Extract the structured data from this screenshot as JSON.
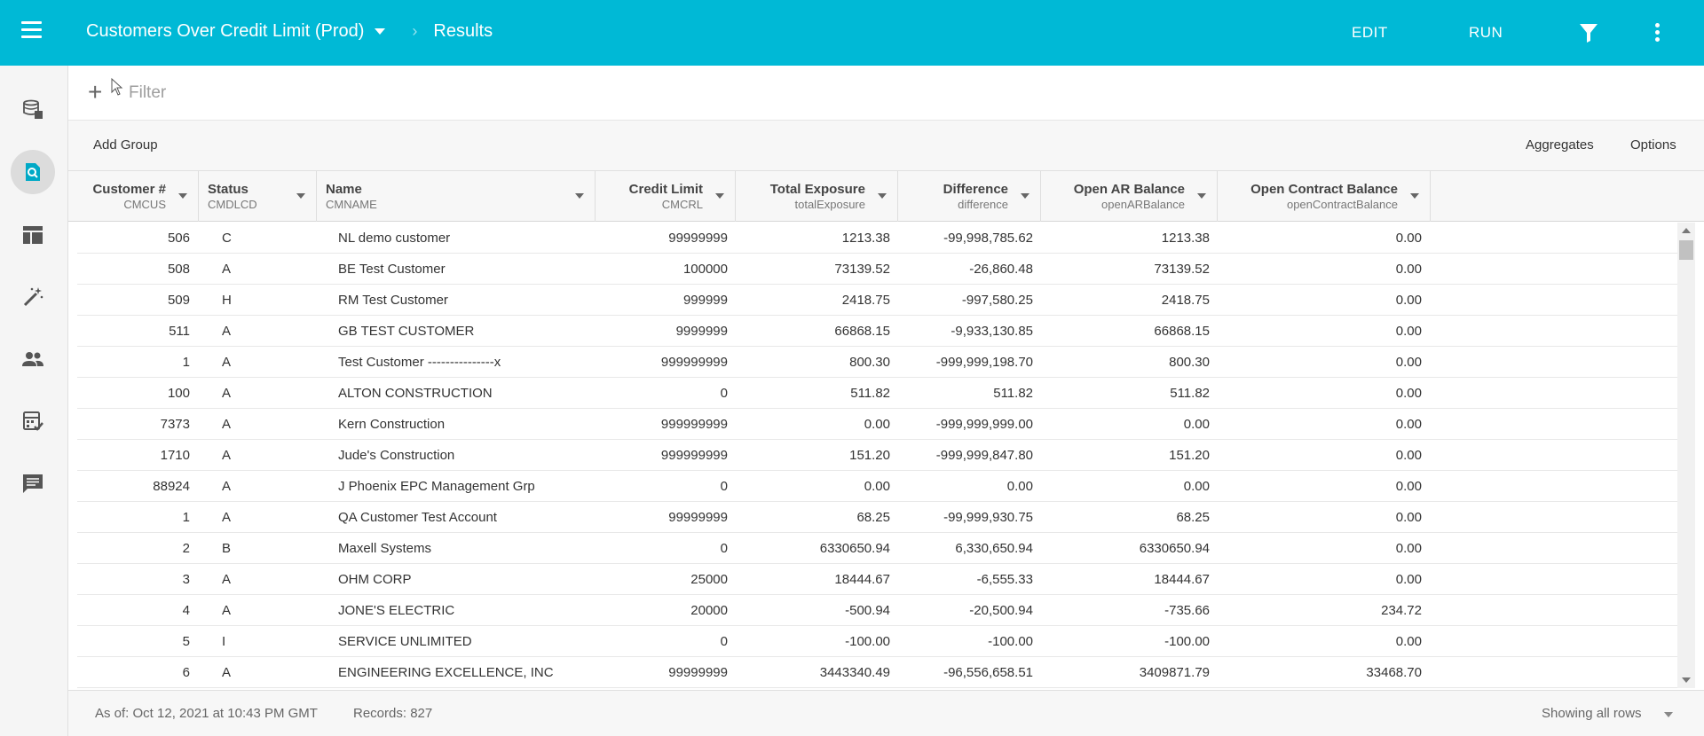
{
  "header": {
    "title": "Customers Over Credit Limit (Prod)",
    "breadcrumb_separator": "›",
    "breadcrumb_current": "Results",
    "edit_label": "EDIT",
    "run_label": "RUN",
    "accent_color": "#00b9d6"
  },
  "sidebar": {
    "items": [
      {
        "icon": "database-icon"
      },
      {
        "icon": "search-results-icon",
        "active": true
      },
      {
        "icon": "layout-icon"
      },
      {
        "icon": "magic-wand-icon"
      },
      {
        "icon": "people-icon"
      },
      {
        "icon": "calculator-icon"
      },
      {
        "icon": "comment-icon"
      }
    ]
  },
  "filter": {
    "add_icon": "+",
    "placeholder": "Filter"
  },
  "toolbar": {
    "add_group": "Add Group",
    "aggregates": "Aggregates",
    "options": "Options"
  },
  "columns": [
    {
      "label": "Customer #",
      "field": "CMCUS"
    },
    {
      "label": "Status",
      "field": "CMDLCD"
    },
    {
      "label": "Name",
      "field": "CMNAME"
    },
    {
      "label": "Credit Limit",
      "field": "CMCRL"
    },
    {
      "label": "Total Exposure",
      "field": "totalExposure"
    },
    {
      "label": "Difference",
      "field": "difference"
    },
    {
      "label": "Open AR Balance",
      "field": "openARBalance"
    },
    {
      "label": "Open Contract Balance",
      "field": "openContractBalance"
    }
  ],
  "rows": [
    [
      "506",
      "C",
      "NL demo customer",
      "99999999",
      "1213.38",
      "-99,998,785.62",
      "1213.38",
      "0.00"
    ],
    [
      "508",
      "A",
      "BE Test Customer",
      "100000",
      "73139.52",
      "-26,860.48",
      "73139.52",
      "0.00"
    ],
    [
      "509",
      "H",
      "RM Test Customer",
      "999999",
      "2418.75",
      "-997,580.25",
      "2418.75",
      "0.00"
    ],
    [
      "511",
      "A",
      "GB TEST CUSTOMER",
      "9999999",
      "66868.15",
      "-9,933,130.85",
      "66868.15",
      "0.00"
    ],
    [
      "1",
      "A",
      "Test Customer ---------------x",
      "999999999",
      "800.30",
      "-999,999,198.70",
      "800.30",
      "0.00"
    ],
    [
      "100",
      "A",
      "ALTON CONSTRUCTION",
      "0",
      "511.82",
      "511.82",
      "511.82",
      "0.00"
    ],
    [
      "7373",
      "A",
      "Kern Construction",
      "999999999",
      "0.00",
      "-999,999,999.00",
      "0.00",
      "0.00"
    ],
    [
      "1710",
      "A",
      "Jude's Construction",
      "999999999",
      "151.20",
      "-999,999,847.80",
      "151.20",
      "0.00"
    ],
    [
      "88924",
      "A",
      "J Phoenix EPC Management Grp",
      "0",
      "0.00",
      "0.00",
      "0.00",
      "0.00"
    ],
    [
      "1",
      "A",
      "QA Customer Test Account",
      "99999999",
      "68.25",
      "-99,999,930.75",
      "68.25",
      "0.00"
    ],
    [
      "2",
      "B",
      "Maxell Systems",
      "0",
      "6330650.94",
      "6,330,650.94",
      "6330650.94",
      "0.00"
    ],
    [
      "3",
      "A",
      "OHM CORP",
      "25000",
      "18444.67",
      "-6,555.33",
      "18444.67",
      "0.00"
    ],
    [
      "4",
      "A",
      "JONE'S ELECTRIC",
      "20000",
      "-500.94",
      "-20,500.94",
      "-735.66",
      "234.72"
    ],
    [
      "5",
      "I",
      "SERVICE UNLIMITED",
      "0",
      "-100.00",
      "-100.00",
      "-100.00",
      "0.00"
    ],
    [
      "6",
      "A",
      "ENGINEERING EXCELLENCE, INC",
      "99999999",
      "3443340.49",
      "-96,556,658.51",
      "3409871.79",
      "33468.70"
    ]
  ],
  "footer": {
    "as_of": "As of:  Oct 12, 2021 at 10:43 PM GMT",
    "records": "Records:  827",
    "showing": "Showing all rows"
  }
}
